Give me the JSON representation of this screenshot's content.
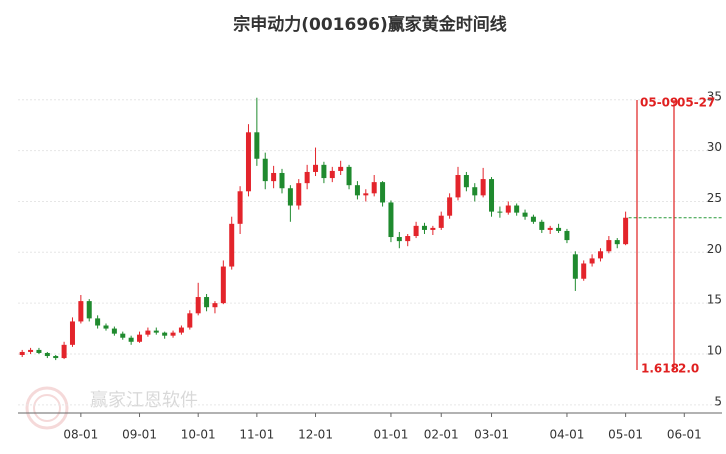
{
  "chart_data": {
    "type": "candlestick",
    "title": "宗申动力(001696)赢家黄金时间线",
    "watermark": "赢家江恩软件",
    "categories": [
      null,
      null,
      null,
      null,
      null,
      null,
      null,
      "08-01",
      null,
      null,
      null,
      null,
      null,
      null,
      "09-01",
      null,
      null,
      null,
      null,
      null,
      null,
      "10-01",
      null,
      null,
      null,
      null,
      null,
      null,
      "11-01",
      null,
      null,
      null,
      null,
      null,
      null,
      "12-01",
      null,
      null,
      null,
      null,
      null,
      null,
      null,
      null,
      "01-01",
      null,
      null,
      null,
      null,
      null,
      "02-01",
      null,
      null,
      null,
      null,
      null,
      "03-01",
      null,
      null,
      null,
      null,
      null,
      null,
      null,
      null,
      "04-01",
      null,
      null,
      null,
      null,
      null,
      null,
      "05-01",
      null,
      null,
      null,
      null,
      null,
      null,
      "06-01",
      null,
      null,
      null,
      null
    ],
    "open": [
      9.9,
      10.2,
      10.4,
      10.1,
      9.8,
      9.6,
      10.9,
      13.2,
      15.2,
      13.5,
      12.8,
      12.5,
      12.0,
      11.6,
      11.2,
      11.9,
      12.3,
      12.1,
      11.8,
      12.1,
      12.6,
      14.0,
      15.6,
      14.6,
      15.0,
      18.6,
      22.8,
      26.0,
      31.8,
      29.2,
      27.0,
      27.8,
      26.3,
      24.6,
      26.8,
      27.9,
      28.6,
      27.3,
      28.0,
      28.4,
      26.6,
      25.6,
      25.8,
      26.9,
      24.9,
      21.5,
      21.1,
      21.6,
      22.6,
      22.2,
      22.4,
      23.6,
      25.4,
      27.6,
      26.4,
      25.6,
      27.2,
      24.0,
      23.9,
      24.6,
      23.9,
      23.5,
      23.0,
      22.2,
      22.4,
      22.1,
      19.8,
      17.4,
      18.9,
      19.4,
      20.1,
      21.2,
      20.8,
      null,
      null,
      null,
      null,
      null,
      null,
      null,
      null,
      null,
      null,
      null
    ],
    "high": [
      10.4,
      10.6,
      10.6,
      10.2,
      9.9,
      11.2,
      13.6,
      15.8,
      15.4,
      13.8,
      13.0,
      12.7,
      12.2,
      11.8,
      12.2,
      12.6,
      12.6,
      12.2,
      12.3,
      12.8,
      14.3,
      17.0,
      15.9,
      15.2,
      19.2,
      23.5,
      26.5,
      32.6,
      35.2,
      29.8,
      28.5,
      28.2,
      26.6,
      27.2,
      28.6,
      30.3,
      28.9,
      28.4,
      29.0,
      28.6,
      27.0,
      26.2,
      27.6,
      27.0,
      25.1,
      22.0,
      21.8,
      23.0,
      22.9,
      22.6,
      24.0,
      25.8,
      28.4,
      27.9,
      26.8,
      28.3,
      27.4,
      24.5,
      25.0,
      24.8,
      24.2,
      23.7,
      23.2,
      22.6,
      22.8,
      22.3,
      20.1,
      19.2,
      19.8,
      20.4,
      21.6,
      21.4,
      24.0,
      null,
      null,
      null,
      null,
      null,
      null,
      null,
      null,
      null,
      null,
      null
    ],
    "low": [
      9.7,
      10.0,
      10.0,
      9.6,
      9.4,
      9.5,
      10.7,
      13.0,
      13.2,
      12.5,
      12.3,
      11.8,
      11.4,
      10.9,
      11.1,
      11.7,
      11.9,
      11.5,
      11.6,
      11.9,
      12.4,
      13.8,
      14.2,
      14.0,
      14.9,
      18.3,
      21.8,
      25.5,
      28.5,
      26.2,
      26.3,
      25.8,
      23.0,
      24.2,
      26.2,
      27.5,
      26.8,
      26.9,
      27.6,
      26.2,
      25.2,
      25.0,
      25.5,
      24.5,
      21.0,
      20.4,
      20.6,
      21.4,
      21.8,
      21.7,
      22.2,
      23.3,
      25.1,
      26.0,
      25.0,
      25.4,
      23.5,
      23.4,
      23.7,
      23.6,
      23.2,
      22.8,
      21.9,
      21.8,
      21.9,
      20.9,
      16.2,
      17.2,
      18.6,
      19.1,
      19.9,
      20.4,
      20.7,
      null,
      null,
      null,
      null,
      null,
      null,
      null,
      null,
      null,
      null,
      null
    ],
    "close": [
      10.2,
      10.4,
      10.1,
      9.8,
      9.6,
      10.9,
      13.2,
      15.2,
      13.5,
      12.8,
      12.5,
      12.0,
      11.6,
      11.2,
      11.9,
      12.3,
      12.1,
      11.8,
      12.1,
      12.6,
      14.0,
      15.6,
      14.6,
      15.0,
      18.6,
      22.8,
      26.0,
      31.8,
      29.2,
      27.0,
      27.8,
      26.3,
      24.6,
      26.8,
      27.9,
      28.6,
      27.3,
      28.0,
      28.4,
      26.6,
      25.6,
      25.8,
      26.9,
      24.9,
      21.5,
      21.1,
      21.6,
      22.6,
      22.2,
      22.4,
      23.6,
      25.4,
      27.6,
      26.4,
      25.6,
      27.2,
      24.0,
      23.9,
      24.6,
      23.9,
      23.5,
      23.0,
      22.2,
      22.4,
      22.1,
      21.2,
      17.4,
      18.9,
      19.4,
      20.1,
      21.2,
      20.8,
      23.4,
      null,
      null,
      null,
      null,
      null,
      null,
      null,
      null,
      null,
      null,
      null
    ],
    "up_color": "#e3242b",
    "down_color": "#1f8a2e",
    "last_price_line_color": "#2a9a3a",
    "ylim": [
      4,
      39.5
    ],
    "yticks": [
      5,
      10,
      15,
      20,
      25,
      30,
      35
    ],
    "grid": true,
    "time_lines": [
      {
        "date": "05-09",
        "ratio": "1.618",
        "color": "#e02020"
      },
      {
        "date": "05-27",
        "ratio": "2.0",
        "color": "#e02020"
      }
    ]
  }
}
